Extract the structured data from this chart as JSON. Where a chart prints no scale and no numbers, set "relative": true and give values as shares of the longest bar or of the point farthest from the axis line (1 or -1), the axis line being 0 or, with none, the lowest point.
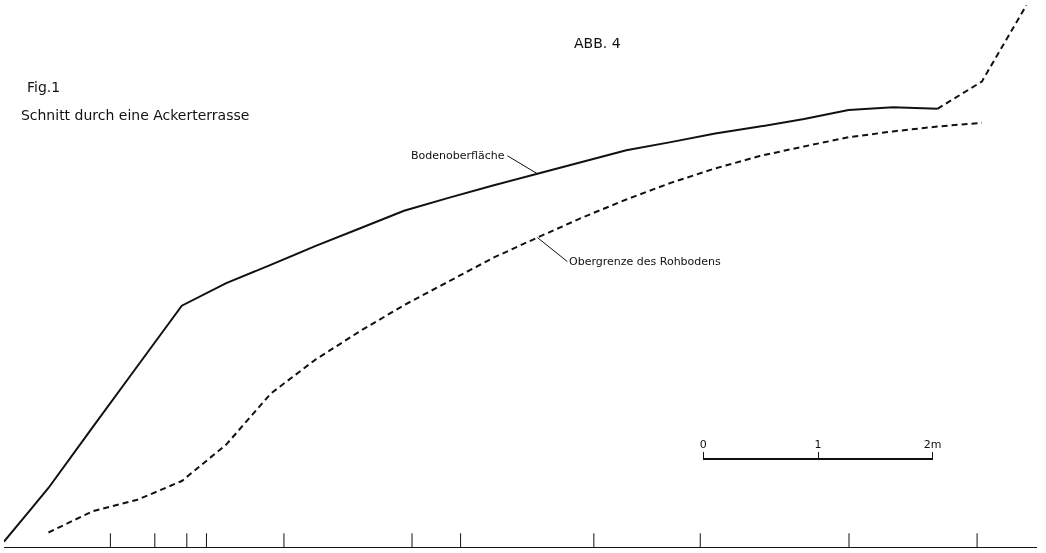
{
  "chart_data": {
    "type": "line",
    "relative": true,
    "title": "Schnitt durch eine Ackerterrasse",
    "annotations": [
      "Fig.1",
      "ABB. 4"
    ],
    "x2lim": [
      0,
      2
    ],
    "x2ticks": [
      0,
      1,
      {
        "value": 2,
        "label": "2m"
      }
    ],
    "categories": [
      null,
      null,
      null,
      null,
      null,
      null,
      null,
      null,
      null,
      null,
      null,
      null,
      null,
      null,
      null,
      null,
      null,
      null,
      null,
      null,
      null,
      null,
      null,
      null
    ],
    "tick_labels": false,
    "legend": false,
    "marker": "none",
    "series": [
      {
        "name": "Bodenoberfläche",
        "color": "#111111",
        "line_style": "solid",
        "values": [
          0,
          0.1,
          0.214,
          0.327,
          0.44,
          0.482,
          0.516,
          0.551,
          0.584,
          0.617,
          0.641,
          0.664,
          0.686,
          0.708,
          0.73,
          0.745,
          0.761,
          0.774,
          0.788,
          0.805,
          0.81,
          0.807,
          null,
          null
        ]
      },
      {
        "color": "#111111",
        "line_style": "dashed",
        "values": [
          null,
          null,
          null,
          null,
          null,
          null,
          null,
          null,
          null,
          null,
          null,
          null,
          null,
          null,
          null,
          null,
          null,
          null,
          null,
          null,
          null,
          0.807,
          0.858,
          1.0
        ]
      },
      {
        "name": "Obergrenze des Rohbodens",
        "color": "#111111",
        "line_style": "dashed",
        "values": [
          null,
          0.017,
          0.057,
          0.078,
          0.113,
          0.181,
          0.276,
          0.339,
          0.392,
          0.441,
          0.485,
          0.529,
          0.567,
          0.604,
          0.638,
          0.669,
          0.696,
          0.719,
          0.737,
          0.754,
          0.765,
          0.774,
          0.781,
          null
        ]
      }
    ]
  }
}
